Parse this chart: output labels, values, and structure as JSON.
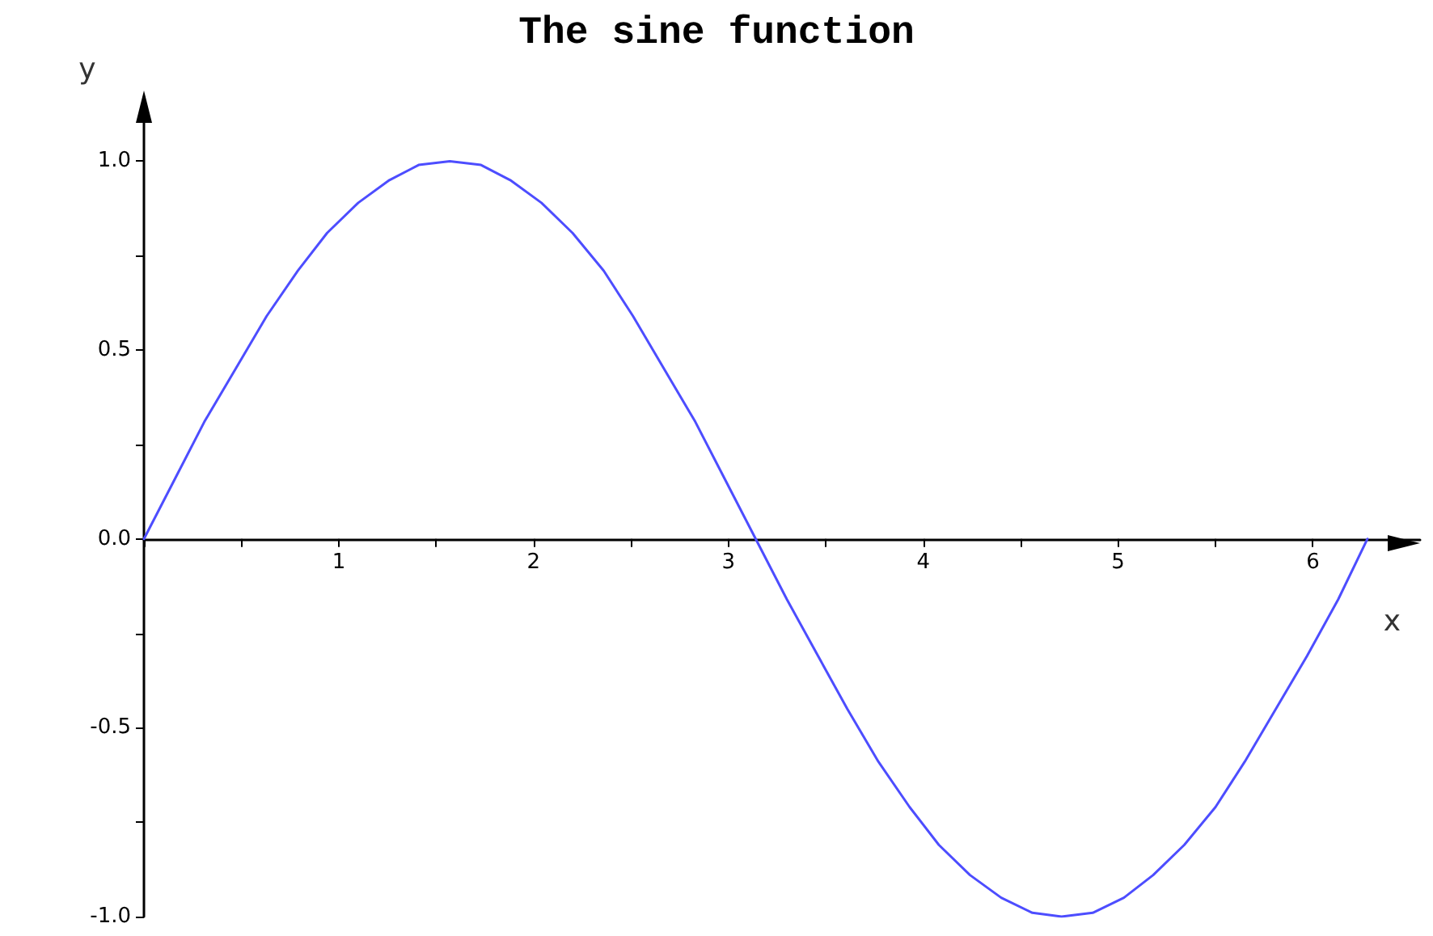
{
  "chart_data": {
    "type": "line",
    "title": "The sine function",
    "xlabel": "x",
    "ylabel": "y",
    "x": [
      0,
      0.16,
      0.31,
      0.47,
      0.63,
      0.79,
      0.94,
      1.1,
      1.26,
      1.41,
      1.57,
      1.73,
      1.88,
      2.04,
      2.2,
      2.36,
      2.51,
      2.67,
      2.83,
      2.98,
      3.14,
      3.3,
      3.46,
      3.61,
      3.77,
      3.93,
      4.08,
      4.24,
      4.4,
      4.56,
      4.71,
      4.87,
      5.03,
      5.18,
      5.34,
      5.5,
      5.65,
      5.81,
      5.97,
      6.13,
      6.28
    ],
    "series": [
      {
        "color": "#4d4dff",
        "values": [
          0,
          0.16,
          0.31,
          0.45,
          0.59,
          0.71,
          0.81,
          0.89,
          0.95,
          0.99,
          1,
          0.99,
          0.95,
          0.89,
          0.81,
          0.71,
          0.59,
          0.45,
          0.31,
          0.16,
          0,
          -0.16,
          -0.31,
          -0.45,
          -0.59,
          -0.71,
          -0.81,
          -0.89,
          -0.95,
          -0.99,
          -1,
          -0.99,
          -0.95,
          -0.89,
          -0.81,
          -0.71,
          -0.59,
          -0.45,
          -0.31,
          -0.16,
          0
        ]
      }
    ],
    "xlim": [
      0,
      6.55
    ],
    "ylim": [
      -1,
      1.17
    ],
    "xticks": [
      {
        "value": 0,
        "label": null
      },
      {
        "value": 0.5,
        "label": null
      },
      1,
      {
        "value": 1.5,
        "label": null
      },
      2,
      {
        "value": 2.5,
        "label": null
      },
      3,
      {
        "value": 3.5,
        "label": null
      },
      4,
      {
        "value": 4.5,
        "label": null
      },
      5,
      {
        "value": 5.5,
        "label": null
      },
      6
    ],
    "yticks": [
      {
        "value": -1,
        "label": "-1.0"
      },
      {
        "value": -0.75,
        "label": null
      },
      {
        "value": -0.5,
        "label": "-0.5"
      },
      {
        "value": -0.25,
        "label": null
      },
      {
        "value": 0,
        "label": "0.0"
      },
      {
        "value": 0.25,
        "label": null
      },
      {
        "value": 0.5,
        "label": "0.5"
      },
      {
        "value": 0.75,
        "label": null
      },
      {
        "value": 1,
        "label": "1.0"
      }
    ],
    "grid": false,
    "marker": "none",
    "line_style": "solid"
  }
}
